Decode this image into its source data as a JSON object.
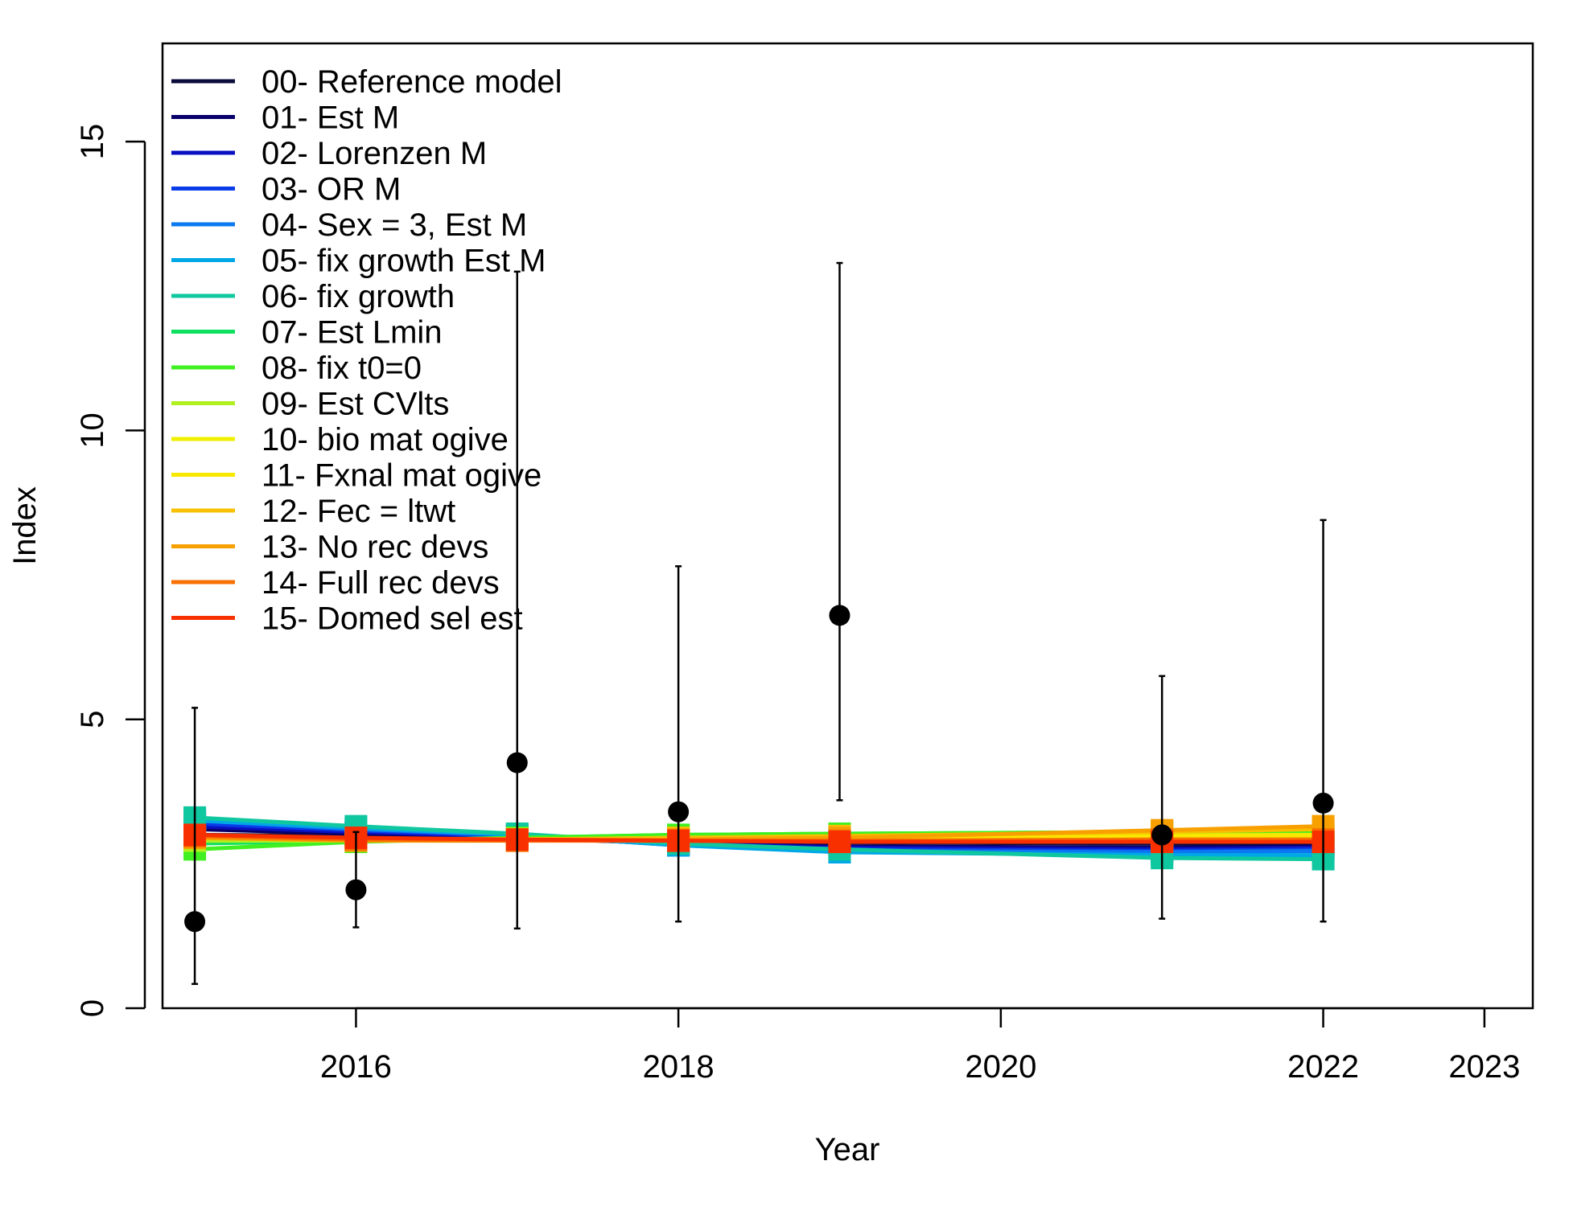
{
  "chart_data": {
    "type": "line",
    "title": "",
    "xlabel": "Year",
    "ylabel": "Index",
    "xlim": [
      2014.8,
      2023.3
    ],
    "ylim": [
      0,
      16.7
    ],
    "x_ticks": [
      2016,
      2018,
      2020,
      2022,
      2023
    ],
    "y_ticks": [
      0,
      5,
      10,
      15
    ],
    "grid": false,
    "legend_position": "top-left",
    "x": [
      2015,
      2016,
      2017,
      2018,
      2019,
      2021,
      2022
    ],
    "observed": {
      "marker": "filled-circle",
      "color": "#000000",
      "values": [
        1.5,
        2.05,
        4.25,
        3.4,
        6.8,
        3.0,
        3.55
      ],
      "lower": [
        0.42,
        1.4,
        1.38,
        1.5,
        3.6,
        1.55,
        1.5
      ],
      "upper": [
        5.2,
        3.05,
        12.75,
        7.65,
        12.9,
        5.75,
        8.45
      ]
    },
    "series": [
      {
        "name": "00- Reference model",
        "color": "#0b0b3b",
        "values": [
          3.0,
          2.98,
          2.95,
          2.9,
          2.87,
          2.85,
          2.85
        ]
      },
      {
        "name": "01- Est M",
        "color": "#08006b",
        "values": [
          3.1,
          3.02,
          2.95,
          2.85,
          2.8,
          2.78,
          2.8
        ]
      },
      {
        "name": "02- Lorenzen M",
        "color": "#0a10c0",
        "values": [
          3.15,
          3.05,
          2.97,
          2.85,
          2.78,
          2.75,
          2.78
        ]
      },
      {
        "name": "03- OR M",
        "color": "#0a3ce8",
        "values": [
          3.2,
          3.08,
          2.98,
          2.83,
          2.75,
          2.72,
          2.75
        ]
      },
      {
        "name": "04- Sex = 3, Est M",
        "color": "#0a78f0",
        "values": [
          3.25,
          3.1,
          3.0,
          2.82,
          2.72,
          2.7,
          2.72
        ]
      },
      {
        "name": "05- fix growth Est M",
        "color": "#00a8e6",
        "values": [
          3.25,
          3.12,
          3.0,
          2.82,
          2.7,
          2.65,
          2.65
        ]
      },
      {
        "name": "06- fix growth",
        "color": "#10c8a0",
        "values": [
          3.3,
          3.15,
          3.02,
          2.85,
          2.75,
          2.6,
          2.58
        ]
      },
      {
        "name": "07- Est Lmin",
        "color": "#10e060",
        "values": [
          2.85,
          2.9,
          2.95,
          3.0,
          3.02,
          3.05,
          3.05
        ]
      },
      {
        "name": "08- fix t0=0",
        "color": "#40f020",
        "values": [
          2.75,
          2.88,
          2.95,
          3.0,
          3.02,
          3.05,
          3.05
        ]
      },
      {
        "name": "09- Est CVlts",
        "color": "#b0f020",
        "values": [
          2.9,
          2.9,
          2.92,
          2.95,
          2.97,
          3.0,
          3.0
        ]
      },
      {
        "name": "10- bio mat ogive",
        "color": "#f0f000",
        "values": [
          2.95,
          2.93,
          2.93,
          2.93,
          2.95,
          2.95,
          2.95
        ]
      },
      {
        "name": "11- Fxnal mat ogive",
        "color": "#f8e800",
        "values": [
          2.95,
          2.93,
          2.92,
          2.93,
          2.95,
          2.98,
          3.0
        ]
      },
      {
        "name": "12- Fec = ltwt",
        "color": "#f8c000",
        "values": [
          2.95,
          2.92,
          2.92,
          2.95,
          2.98,
          3.05,
          3.1
        ]
      },
      {
        "name": "13- No rec devs",
        "color": "#f8a000",
        "values": [
          2.95,
          2.9,
          2.9,
          2.92,
          2.95,
          3.08,
          3.15
        ]
      },
      {
        "name": "14- Full rec devs",
        "color": "#f87000",
        "values": [
          2.98,
          2.92,
          2.9,
          2.9,
          2.9,
          2.92,
          2.92
        ]
      },
      {
        "name": "15- Domed sel est",
        "color": "#f83000",
        "values": [
          3.0,
          2.95,
          2.92,
          2.9,
          2.88,
          2.88,
          2.88
        ]
      }
    ]
  }
}
